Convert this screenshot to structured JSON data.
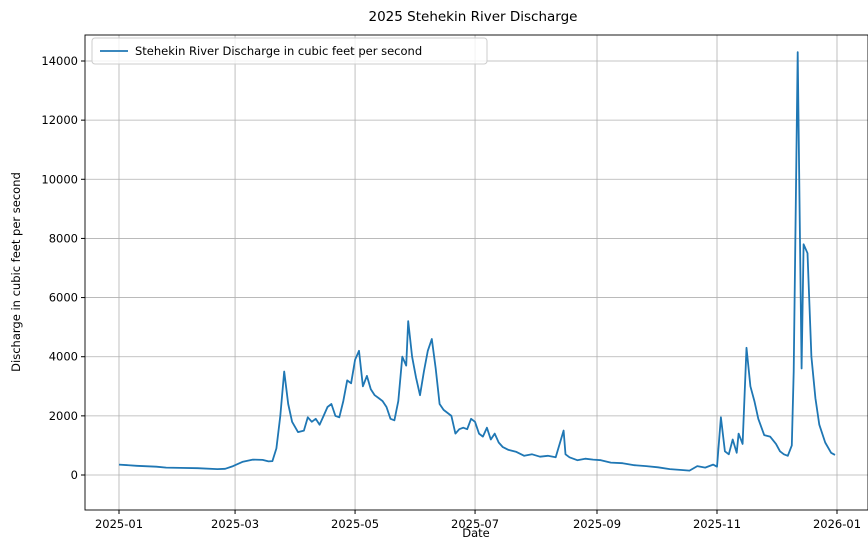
{
  "chart_data": {
    "type": "line",
    "title": "2025 Stehekin River Discharge",
    "xlabel": "Date",
    "ylabel": "Discharge in cubic feet per second",
    "xlim": [
      "2024-12-18",
      "2026-01-13"
    ],
    "ylim": [
      -700,
      15000
    ],
    "grid": true,
    "legend_position": "upper left",
    "x_ticks": [
      "2025-01",
      "2025-03",
      "2025-05",
      "2025-07",
      "2025-09",
      "2025-11",
      "2026-01"
    ],
    "y_ticks": [
      0,
      2000,
      4000,
      6000,
      8000,
      10000,
      12000,
      14000
    ],
    "series": [
      {
        "name": "Stehekin River Discharge in cubic feet per second",
        "color": "#1f77b4",
        "x": [
          "2025-01-01",
          "2025-01-10",
          "2025-01-20",
          "2025-01-25",
          "2025-02-01",
          "2025-02-10",
          "2025-02-20",
          "2025-02-24",
          "2025-02-28",
          "2025-03-05",
          "2025-03-10",
          "2025-03-15",
          "2025-03-18",
          "2025-03-20",
          "2025-03-22",
          "2025-03-24",
          "2025-03-26",
          "2025-03-28",
          "2025-03-30",
          "2025-04-02",
          "2025-04-05",
          "2025-04-07",
          "2025-04-09",
          "2025-04-11",
          "2025-04-13",
          "2025-04-15",
          "2025-04-17",
          "2025-04-19",
          "2025-04-21",
          "2025-04-23",
          "2025-04-25",
          "2025-04-27",
          "2025-04-29",
          "2025-05-01",
          "2025-05-03",
          "2025-05-05",
          "2025-05-07",
          "2025-05-09",
          "2025-05-11",
          "2025-05-13",
          "2025-05-15",
          "2025-05-17",
          "2025-05-19",
          "2025-05-21",
          "2025-05-23",
          "2025-05-25",
          "2025-05-27",
          "2025-05-28",
          "2025-05-30",
          "2025-06-01",
          "2025-06-03",
          "2025-06-05",
          "2025-06-07",
          "2025-06-09",
          "2025-06-11",
          "2025-06-13",
          "2025-06-15",
          "2025-06-17",
          "2025-06-19",
          "2025-06-21",
          "2025-06-23",
          "2025-06-25",
          "2025-06-27",
          "2025-06-29",
          "2025-07-01",
          "2025-07-03",
          "2025-07-05",
          "2025-07-07",
          "2025-07-09",
          "2025-07-11",
          "2025-07-13",
          "2025-07-15",
          "2025-07-18",
          "2025-07-22",
          "2025-07-26",
          "2025-07-30",
          "2025-08-03",
          "2025-08-07",
          "2025-08-11",
          "2025-08-15",
          "2025-08-16",
          "2025-08-18",
          "2025-08-22",
          "2025-08-26",
          "2025-08-30",
          "2025-09-03",
          "2025-09-08",
          "2025-09-14",
          "2025-09-20",
          "2025-09-26",
          "2025-10-02",
          "2025-10-08",
          "2025-10-14",
          "2025-10-18",
          "2025-10-22",
          "2025-10-26",
          "2025-10-30",
          "2025-11-01",
          "2025-11-03",
          "2025-11-05",
          "2025-11-07",
          "2025-11-09",
          "2025-11-11",
          "2025-11-12",
          "2025-11-14",
          "2025-11-16",
          "2025-11-18",
          "2025-11-20",
          "2025-11-22",
          "2025-11-25",
          "2025-11-28",
          "2025-12-01",
          "2025-12-03",
          "2025-12-05",
          "2025-12-07",
          "2025-12-09",
          "2025-12-10",
          "2025-12-12",
          "2025-12-13",
          "2025-12-14",
          "2025-12-15",
          "2025-12-17",
          "2025-12-19",
          "2025-12-21",
          "2025-12-23",
          "2025-12-26",
          "2025-12-29",
          "2025-12-31"
        ],
        "values": [
          350,
          310,
          280,
          250,
          240,
          230,
          200,
          210,
          300,
          450,
          520,
          510,
          460,
          470,
          900,
          2000,
          3500,
          2400,
          1800,
          1450,
          1500,
          1950,
          1800,
          1900,
          1700,
          2000,
          2300,
          2400,
          2000,
          1950,
          2500,
          3200,
          3100,
          3900,
          4200,
          3000,
          3350,
          2900,
          2700,
          2600,
          2500,
          2300,
          1900,
          1850,
          2500,
          4000,
          3700,
          5200,
          4000,
          3300,
          2700,
          3500,
          4200,
          4600,
          3600,
          2400,
          2200,
          2100,
          2000,
          1400,
          1550,
          1600,
          1550,
          1900,
          1800,
          1400,
          1300,
          1600,
          1200,
          1400,
          1100,
          950,
          850,
          780,
          650,
          700,
          620,
          650,
          600,
          1500,
          700,
          600,
          500,
          550,
          520,
          500,
          420,
          400,
          330,
          300,
          260,
          200,
          170,
          150,
          300,
          250,
          350,
          280,
          1950,
          800,
          700,
          1200,
          750,
          1400,
          1050,
          4300,
          3000,
          2500,
          1900,
          1350,
          1300,
          1050,
          800,
          700,
          650,
          1000,
          3500,
          14300,
          9000,
          3600,
          7800,
          7500,
          4000,
          2600,
          1700,
          1100,
          750,
          680
        ]
      }
    ]
  },
  "legend": {
    "label": "Stehekin River Discharge in cubic feet per second"
  },
  "axes": {
    "title": "2025 Stehekin River Discharge",
    "xlabel": "Date",
    "ylabel": "Discharge in cubic feet per second"
  }
}
